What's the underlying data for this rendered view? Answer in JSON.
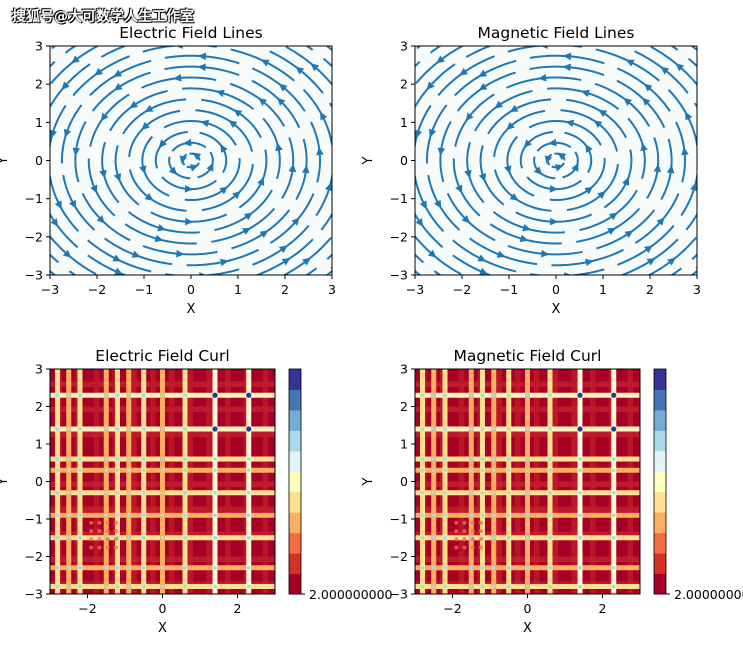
{
  "watermark": "搜狐号@大可数学人生工作室",
  "colors": {
    "stream": "#1f77b4",
    "stream_bg": "#f7fbfa",
    "cmap": [
      "#a50026",
      "#d73027",
      "#f46d43",
      "#fdae61",
      "#fee090",
      "#ffffbf",
      "#e0f3f8",
      "#abd9e9",
      "#74add1",
      "#4575b4",
      "#313695"
    ]
  },
  "chart_data": [
    {
      "type": "streamplot",
      "title": "Electric Field Lines",
      "xlabel": "X",
      "ylabel": "Y",
      "xlim": [
        -3,
        3
      ],
      "ylim": [
        -3,
        3
      ],
      "xticks": [
        "−3",
        "−2",
        "−1",
        "0",
        "1",
        "2",
        "3"
      ],
      "yticks": [
        "−3",
        "−2",
        "−1",
        "0",
        "1",
        "2",
        "3"
      ],
      "field": "vortex",
      "center": [
        0,
        0
      ]
    },
    {
      "type": "streamplot",
      "title": "Magnetic Field Lines",
      "xlabel": "X",
      "ylabel": "Y",
      "xlim": [
        -3,
        3
      ],
      "ylim": [
        -3,
        3
      ],
      "xticks": [
        "−3",
        "−2",
        "−1",
        "0",
        "1",
        "2",
        "3"
      ],
      "yticks": [
        "−3",
        "−2",
        "−1",
        "0",
        "1",
        "2",
        "3"
      ],
      "field": "vortex",
      "center": [
        0,
        0
      ]
    },
    {
      "type": "heatmap",
      "title": "Electric Field Curl",
      "xlabel": "X",
      "ylabel": "Y",
      "xlim": [
        -3,
        3
      ],
      "ylim": [
        -3,
        3
      ],
      "xticks": [
        "−2",
        "0",
        "2"
      ],
      "yticks": [
        "−3",
        "−2",
        "−1",
        "0",
        "1",
        "2",
        "3"
      ],
      "values": "near-constant 2.0 with small floating-point deviations",
      "colorbar_label": "2.000000000",
      "bright_columns_x": [
        -2.8,
        -2.5,
        -2.2,
        -1.5,
        -1.2,
        -0.9,
        -0.5,
        0.0,
        0.6,
        1.4,
        2.3
      ],
      "bright_rows_y": [
        2.3,
        1.4,
        0.6,
        0.3,
        -0.3,
        -0.9,
        -1.5,
        -2.3,
        -2.8
      ]
    },
    {
      "type": "heatmap",
      "title": "Magnetic Field Curl",
      "xlabel": "X",
      "ylabel": "Y",
      "xlim": [
        -3,
        3
      ],
      "ylim": [
        -3,
        3
      ],
      "xticks": [
        "−2",
        "0",
        "2"
      ],
      "yticks": [
        "−3",
        "−2",
        "−1",
        "0",
        "1",
        "2",
        "3"
      ],
      "values": "near-constant 2.0 with small floating-point deviations",
      "colorbar_label": "2.000000000",
      "bright_columns_x": [
        -2.8,
        -2.5,
        -2.2,
        -1.5,
        -1.2,
        -0.9,
        -0.5,
        0.0,
        0.6,
        1.4,
        2.3
      ],
      "bright_rows_y": [
        2.3,
        1.4,
        0.6,
        0.3,
        -0.3,
        -0.9,
        -1.5,
        -2.3,
        -2.8
      ]
    }
  ]
}
